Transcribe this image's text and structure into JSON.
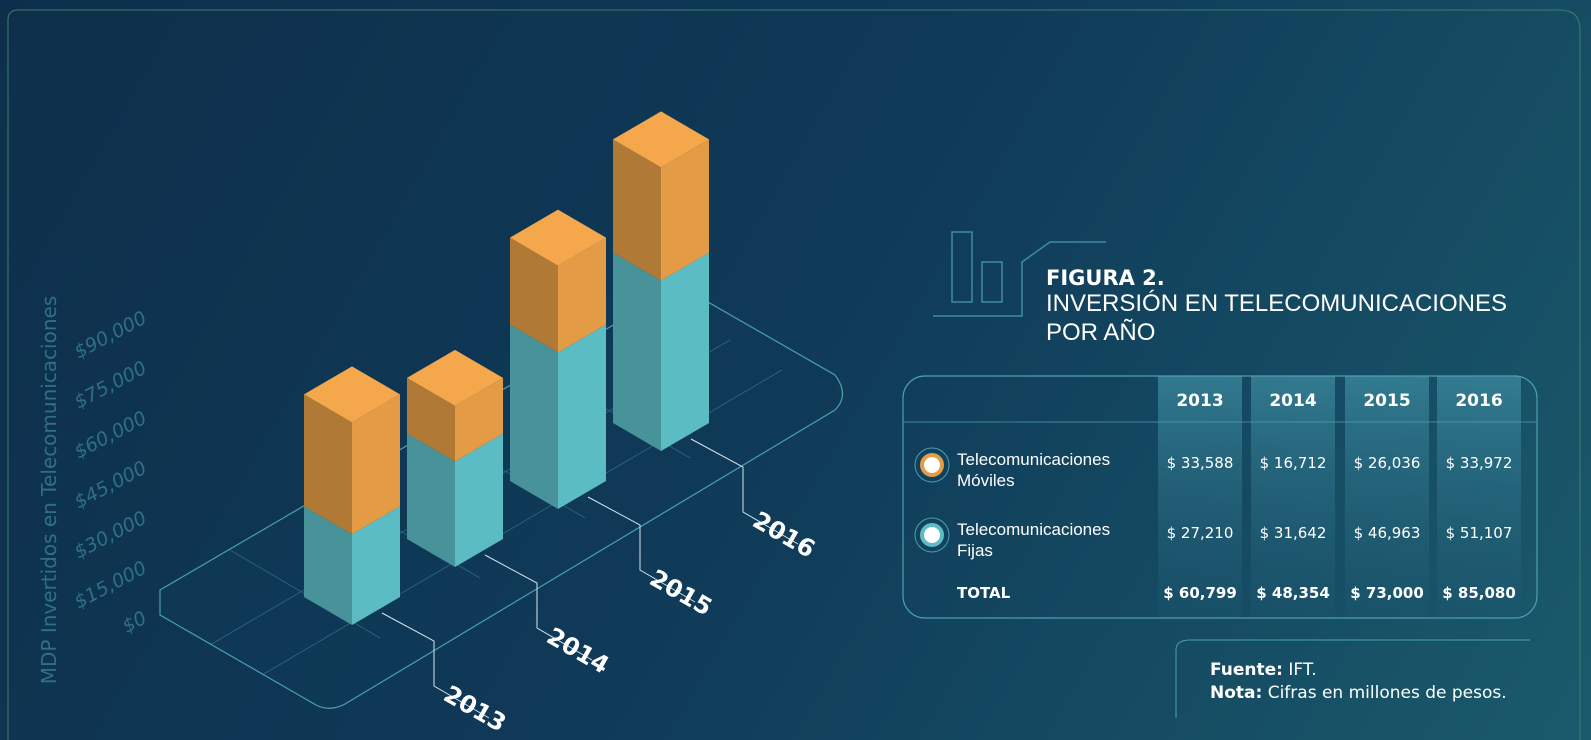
{
  "chart_data": {
    "type": "bar",
    "stacked": true,
    "y_label": "MDP Invertidos en Telecomunicaciones",
    "categories": [
      "2013",
      "2014",
      "2015",
      "2016"
    ],
    "series": [
      {
        "name": "Telecomunicaciones Fijas",
        "color": "#5bbcc4",
        "values": [
          27210,
          31642,
          46963,
          51107
        ],
        "value_labels": [
          "$ 27,210",
          "$ 31,642",
          "$ 46,963",
          "$ 51,107"
        ]
      },
      {
        "name": "Telecomunicaciones Móviles",
        "color": "#e39b45",
        "values": [
          33588,
          16712,
          26036,
          33972
        ],
        "value_labels": [
          "$ 33,588",
          "$ 16,712",
          "$ 26,036",
          "$ 33,972"
        ]
      }
    ],
    "ylim": [
      0,
      90000
    ],
    "yticks": [
      {
        "value": 0,
        "label": "$0"
      },
      {
        "value": 15000,
        "label": "$15,000"
      },
      {
        "value": 30000,
        "label": "$30,000"
      },
      {
        "value": 45000,
        "label": "$45,000"
      },
      {
        "value": 60000,
        "label": "$60,000"
      },
      {
        "value": 75000,
        "label": "$75,000"
      },
      {
        "value": 90000,
        "label": "$90,000"
      }
    ]
  },
  "figure": {
    "number": "FIGURA 2.",
    "title": "INVERSIÓN EN TELECOMUNICACIONES POR AÑO"
  },
  "table": {
    "total_label": "TOTAL",
    "totals": [
      "$ 60,799",
      "$ 48,354",
      "$ 73,000",
      "$ 85,080"
    ]
  },
  "footer": {
    "source_label": "Fuente:",
    "source": "IFT.",
    "note_label": "Nota:",
    "note": "Cifras en millones de pesos."
  }
}
